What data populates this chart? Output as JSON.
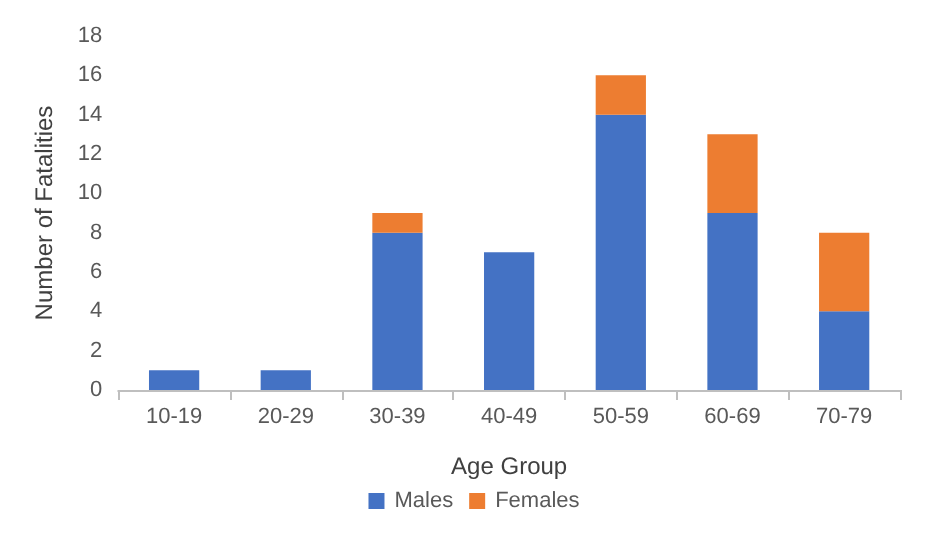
{
  "chart_data": {
    "type": "bar",
    "stacked": true,
    "xlabel": "Age Group",
    "ylabel": "Number of Fatalities",
    "categories": [
      "10-19",
      "20-29",
      "30-39",
      "40-49",
      "50-59",
      "60-69",
      "70-79"
    ],
    "series": [
      {
        "name": "Males",
        "color": "#4472c4",
        "values": [
          1,
          1,
          8,
          7,
          14,
          9,
          4
        ]
      },
      {
        "name": "Females",
        "color": "#ed7d31",
        "values": [
          0,
          0,
          1,
          0,
          2,
          4,
          4
        ]
      }
    ],
    "ylim": [
      0,
      18
    ],
    "yticks": [
      0,
      2,
      4,
      6,
      8,
      10,
      12,
      14,
      16,
      18
    ],
    "grid": false,
    "legend": "bottom"
  }
}
